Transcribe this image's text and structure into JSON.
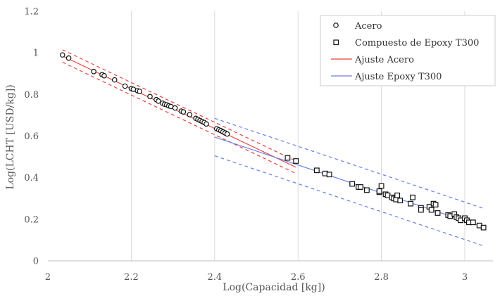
{
  "chart_data": {
    "type": "scatter",
    "title": "",
    "xlabel": "Log(Capacidad [kg])",
    "ylabel": "Log(LCHT [USD/kg])",
    "xlim": [
      2,
      3.1
    ],
    "ylim": [
      0,
      1.2
    ],
    "x_ticks": [
      "2",
      "2.2",
      "2.4",
      "2.6",
      "2.8",
      "3"
    ],
    "y_ticks": [
      "0",
      "0.2",
      "0.4",
      "0.6",
      "0.8",
      "1",
      "1.2"
    ],
    "grid": "vertical",
    "legend_position": "top-right",
    "colors": {
      "fit_steel": "#e8403c",
      "fit_epoxy": "#6a7fe0",
      "marker": "#111111",
      "grid": "#d9d9d9"
    },
    "legend": [
      {
        "label": "Acero",
        "symbol": "circle"
      },
      {
        "label": "Compuesto de Epoxy T300",
        "symbol": "square"
      },
      {
        "label": "Ajuste Acero",
        "symbol": "red-line"
      },
      {
        "label": "Ajuste Epoxy T300",
        "symbol": "blue-line"
      }
    ],
    "series": [
      {
        "name": "Acero",
        "marker": "circle",
        "points": [
          [
            2.035,
            0.99
          ],
          [
            2.05,
            0.975
          ],
          [
            2.11,
            0.91
          ],
          [
            2.13,
            0.895
          ],
          [
            2.135,
            0.89
          ],
          [
            2.16,
            0.87
          ],
          [
            2.185,
            0.84
          ],
          [
            2.2,
            0.828
          ],
          [
            2.205,
            0.825
          ],
          [
            2.215,
            0.818
          ],
          [
            2.22,
            0.815
          ],
          [
            2.245,
            0.79
          ],
          [
            2.26,
            0.775
          ],
          [
            2.265,
            0.768
          ],
          [
            2.275,
            0.758
          ],
          [
            2.28,
            0.753
          ],
          [
            2.285,
            0.75
          ],
          [
            2.29,
            0.745
          ],
          [
            2.295,
            0.742
          ],
          [
            2.305,
            0.735
          ],
          [
            2.32,
            0.72
          ],
          [
            2.325,
            0.716
          ],
          [
            2.34,
            0.703
          ],
          [
            2.355,
            0.685
          ],
          [
            2.36,
            0.68
          ],
          [
            2.365,
            0.675
          ],
          [
            2.37,
            0.67
          ],
          [
            2.375,
            0.665
          ],
          [
            2.38,
            0.658
          ],
          [
            2.405,
            0.635
          ],
          [
            2.41,
            0.63
          ],
          [
            2.415,
            0.626
          ],
          [
            2.42,
            0.62
          ],
          [
            2.425,
            0.615
          ],
          [
            2.43,
            0.61
          ]
        ]
      },
      {
        "name": "Compuesto de Epoxy T300",
        "marker": "square",
        "points": [
          [
            2.575,
            0.495
          ],
          [
            2.595,
            0.48
          ],
          [
            2.645,
            0.435
          ],
          [
            2.665,
            0.42
          ],
          [
            2.675,
            0.415
          ],
          [
            2.73,
            0.37
          ],
          [
            2.745,
            0.355
          ],
          [
            2.75,
            0.355
          ],
          [
            2.765,
            0.34
          ],
          [
            2.795,
            0.33
          ],
          [
            2.795,
            0.335
          ],
          [
            2.8,
            0.36
          ],
          [
            2.81,
            0.32
          ],
          [
            2.815,
            0.315
          ],
          [
            2.825,
            0.305
          ],
          [
            2.83,
            0.3
          ],
          [
            2.835,
            0.295
          ],
          [
            2.838,
            0.315
          ],
          [
            2.845,
            0.29
          ],
          [
            2.87,
            0.275
          ],
          [
            2.875,
            0.305
          ],
          [
            2.895,
            0.255
          ],
          [
            2.895,
            0.245
          ],
          [
            2.915,
            0.26
          ],
          [
            2.92,
            0.245
          ],
          [
            2.925,
            0.275
          ],
          [
            2.93,
            0.27
          ],
          [
            2.935,
            0.23
          ],
          [
            2.96,
            0.22
          ],
          [
            2.965,
            0.215
          ],
          [
            2.975,
            0.225
          ],
          [
            2.98,
            0.21
          ],
          [
            2.985,
            0.205
          ],
          [
            2.99,
            0.195
          ],
          [
            3.0,
            0.205
          ],
          [
            3.005,
            0.195
          ],
          [
            3.01,
            0.185
          ],
          [
            3.02,
            0.185
          ],
          [
            3.035,
            0.17
          ],
          [
            3.045,
            0.16
          ]
        ]
      }
    ],
    "fits": [
      {
        "name": "Ajuste Acero",
        "color": "#e8403c",
        "x": [
          2.035,
          2.595
        ],
        "y": [
          0.985,
          0.45
        ],
        "band": 0.03
      },
      {
        "name": "Ajuste Epoxy T300",
        "color": "#6a7fe0",
        "x": [
          2.4,
          3.045
        ],
        "y": [
          0.595,
          0.162
        ],
        "band": 0.09
      }
    ]
  }
}
